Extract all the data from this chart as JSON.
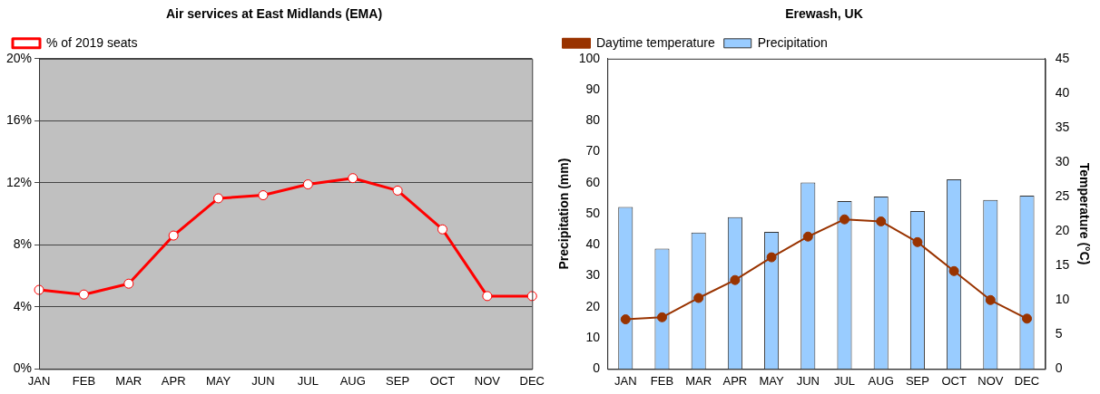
{
  "chart_data": [
    {
      "type": "line",
      "title": "Air services at East Midlands (EMA)",
      "categories": [
        "JAN",
        "FEB",
        "MAR",
        "APR",
        "MAY",
        "JUN",
        "JUL",
        "AUG",
        "SEP",
        "OCT",
        "NOV",
        "DEC"
      ],
      "series": [
        {
          "name": "% of 2019 seats",
          "color": "#ff0000",
          "values": [
            5.1,
            4.8,
            5.5,
            8.6,
            11.0,
            11.2,
            11.9,
            12.3,
            11.5,
            9.0,
            4.7,
            4.7
          ]
        }
      ],
      "ylim": [
        0,
        20
      ],
      "yticks": [
        {
          "value": 0,
          "label": "0%"
        },
        {
          "value": 4,
          "label": "4%"
        },
        {
          "value": 8,
          "label": "8%"
        },
        {
          "value": 12,
          "label": "12%"
        },
        {
          "value": 16,
          "label": "16%"
        },
        {
          "value": 20,
          "label": "20%"
        }
      ],
      "grid": "y",
      "legend": "top left",
      "marker": "circle"
    },
    {
      "type": "bar",
      "title": "Erewash, UK",
      "ylabel": "Precipitation (mm)",
      "y2label": "Temperature (°C)",
      "categories": [
        "JAN",
        "FEB",
        "MAR",
        "APR",
        "MAY",
        "JUN",
        "JUL",
        "AUG",
        "SEP",
        "OCT",
        "NOV",
        "DEC"
      ],
      "series": [
        {
          "name": "Precipitation",
          "color": "#99ccff",
          "values": [
            52.2,
            38.8,
            44.0,
            48.9,
            44.2,
            60.1,
            54.1,
            55.6,
            50.9,
            61.1,
            54.5,
            55.9
          ]
        },
        {
          "name": "Daytime temperature",
          "type": "line",
          "axis": "y2",
          "color": "#993300",
          "values": [
            7.2,
            7.5,
            10.3,
            12.9,
            16.2,
            19.2,
            21.7,
            21.4,
            18.4,
            14.2,
            10.0,
            7.3
          ]
        }
      ],
      "ylim": [
        0,
        100
      ],
      "yticks": [
        0,
        10,
        20,
        30,
        40,
        50,
        60,
        70,
        80,
        90,
        100
      ],
      "y2lim": [
        0,
        45
      ],
      "y2ticks": [
        0,
        5,
        10,
        15,
        20,
        25,
        30,
        35,
        40,
        45
      ],
      "grid": false,
      "legend": "top left",
      "marker": "circle"
    }
  ]
}
